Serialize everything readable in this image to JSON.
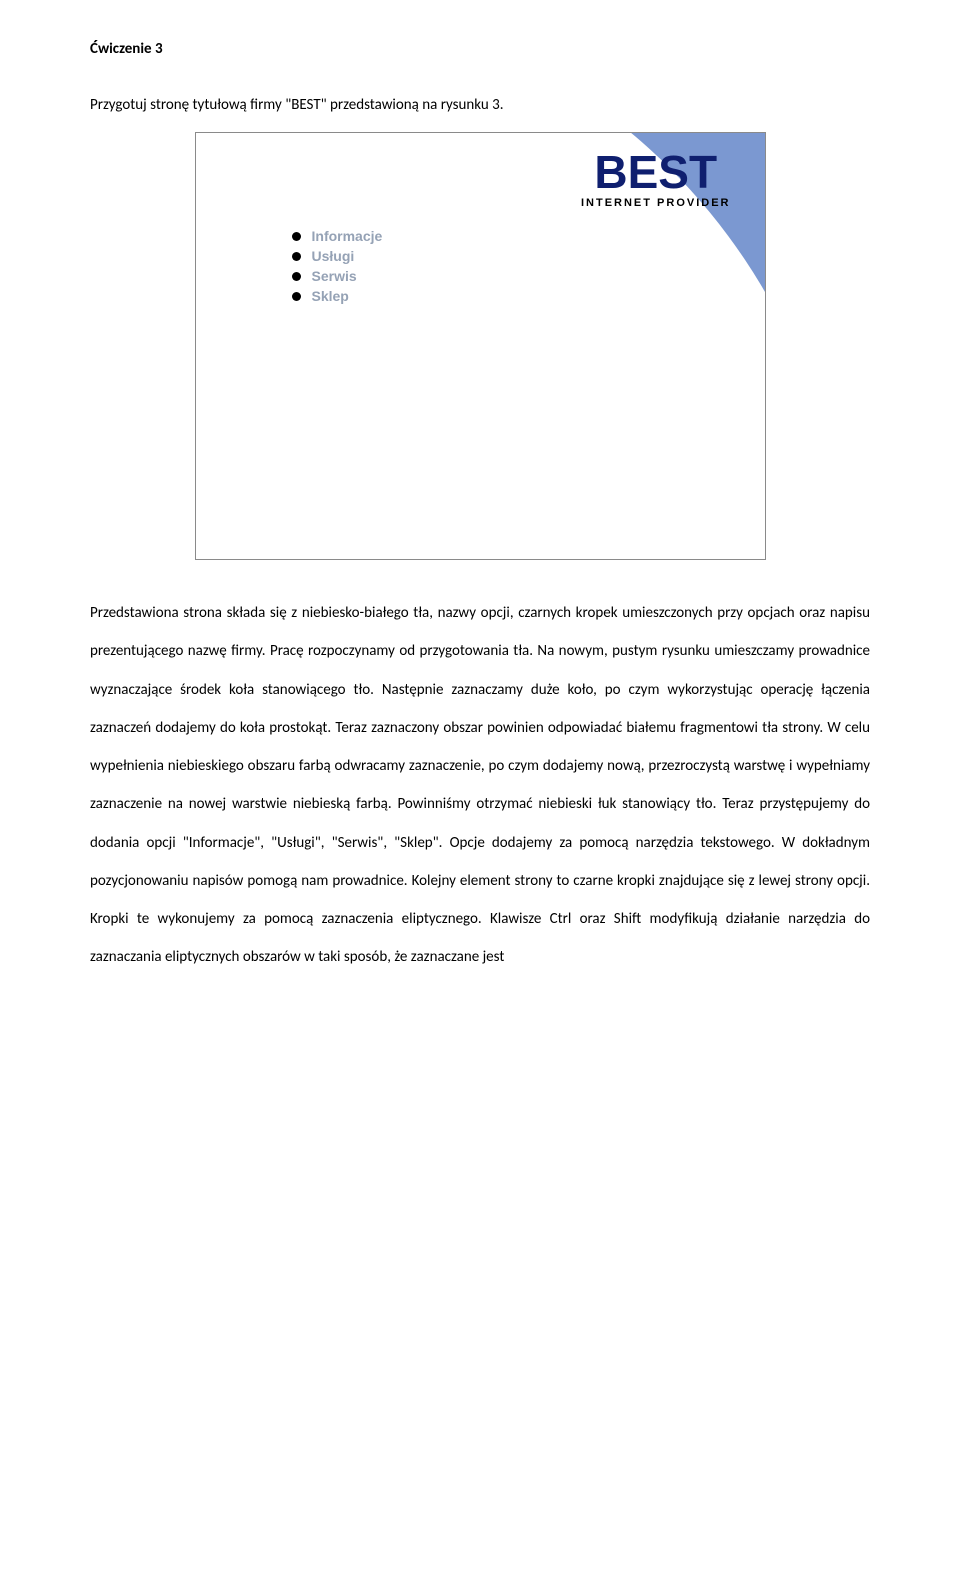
{
  "heading": "Ćwiczenie 3",
  "intro": "Przygotuj stronę tytułową firmy \"BEST\" przedstawioną na rysunku 3.",
  "mockup": {
    "bg_color": "#7b98d1",
    "white_circle_color": "#ffffff",
    "logo_main": "BEST",
    "logo_sub": "INTERNET PROVIDER",
    "logo_main_color": "#0f1f6f",
    "logo_sub_color": "#000000",
    "bullet_color": "#000000",
    "menu_label_color": "#95a2b5",
    "menu_items": [
      "Informacje",
      "Usługi",
      "Serwis",
      "Sklep"
    ]
  },
  "body": "Przedstawiona strona składa się z niebiesko-białego tła, nazwy opcji, czarnych kropek umieszczonych przy opcjach oraz napisu prezentującego nazwę firmy. Pracę rozpoczynamy od przygotowania tła. Na nowym, pustym rysunku umieszczamy prowadnice wyznaczające środek koła stanowiącego tło. Następnie zaznaczamy duże koło, po czym wykorzystując operację łączenia zaznaczeń dodajemy do koła prostokąt. Teraz zaznaczony obszar powinien odpowiadać białemu fragmentowi tła strony. W celu wypełnienia niebieskiego obszaru farbą odwracamy zaznaczenie, po czym dodajemy nową, przezroczystą warstwę i wypełniamy zaznaczenie na nowej warstwie niebieską farbą. Powinniśmy otrzymać niebieski łuk stanowiący tło. Teraz przystępujemy do dodania opcji \"Informacje\", \"Usługi\", \"Serwis\", \"Sklep\". Opcje dodajemy za pomocą narzędzia tekstowego. W dokładnym pozycjonowaniu napisów pomogą nam prowadnice. Kolejny element strony to czarne kropki znajdujące się z lewej strony opcji. Kropki te wykonujemy za pomocą zaznaczenia eliptycznego. Klawisze Ctrl oraz Shift modyfikują działanie narzędzia do zaznaczania eliptycznych obszarów w taki sposób, że zaznaczane jest"
}
